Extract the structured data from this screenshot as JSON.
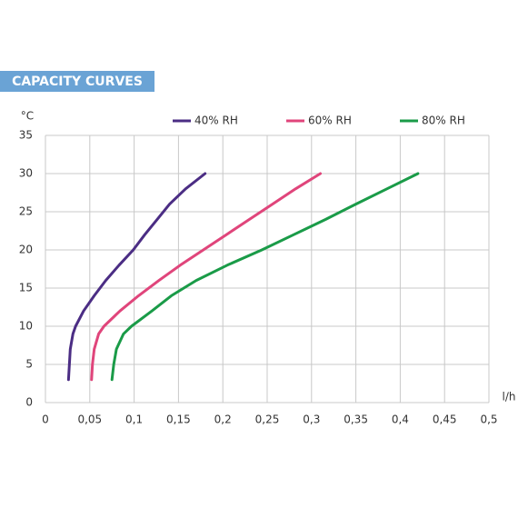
{
  "chart_data": {
    "type": "line",
    "title": "CAPACITY CURVES",
    "x_label": "l/h",
    "y_label": "°C",
    "xlim": [
      0,
      0.5
    ],
    "ylim": [
      0,
      35
    ],
    "xticks": [
      0,
      {
        "value": 0.05,
        "label": "0,05"
      },
      {
        "value": 0.1,
        "label": "0,1"
      },
      {
        "value": 0.15,
        "label": "0,15"
      },
      {
        "value": 0.2,
        "label": "0,2"
      },
      {
        "value": 0.25,
        "label": "0,25"
      },
      {
        "value": 0.3,
        "label": "0,3"
      },
      {
        "value": 0.35,
        "label": "0,35"
      },
      {
        "value": 0.4,
        "label": "0,4"
      },
      {
        "value": 0.45,
        "label": "0,45"
      },
      {
        "value": 0.5,
        "label": "0,5"
      }
    ],
    "yticks": [
      0,
      5,
      10,
      15,
      20,
      25,
      30,
      35
    ],
    "grid": true,
    "series": [
      {
        "name": "40% RH",
        "color": "#4b2d84",
        "x": [
          0.026,
          0.027,
          0.028,
          0.031,
          0.034,
          0.043,
          0.055,
          0.068,
          0.083,
          0.099,
          0.112,
          0.126,
          0.14,
          0.158,
          0.18
        ],
        "values": [
          3,
          5,
          7,
          9,
          10,
          12,
          14,
          16,
          18,
          20,
          22,
          24,
          26,
          28,
          30
        ]
      },
      {
        "name": "60% RH",
        "color": "#e0457b",
        "x": [
          0.052,
          0.053,
          0.055,
          0.06,
          0.066,
          0.084,
          0.105,
          0.128,
          0.152,
          0.178,
          0.204,
          0.23,
          0.256,
          0.282,
          0.31
        ],
        "values": [
          3,
          5,
          7,
          9,
          10,
          12,
          14,
          16,
          18,
          20,
          22,
          24,
          26,
          28,
          30
        ]
      },
      {
        "name": "80% RH",
        "color": "#1a9b48",
        "x": [
          0.075,
          0.077,
          0.08,
          0.088,
          0.097,
          0.12,
          0.142,
          0.17,
          0.205,
          0.244,
          0.28,
          0.316,
          0.35,
          0.385,
          0.42
        ],
        "values": [
          3,
          5,
          7,
          9,
          10,
          12,
          14,
          16,
          18,
          20,
          22,
          24,
          26,
          28,
          30
        ]
      }
    ]
  }
}
